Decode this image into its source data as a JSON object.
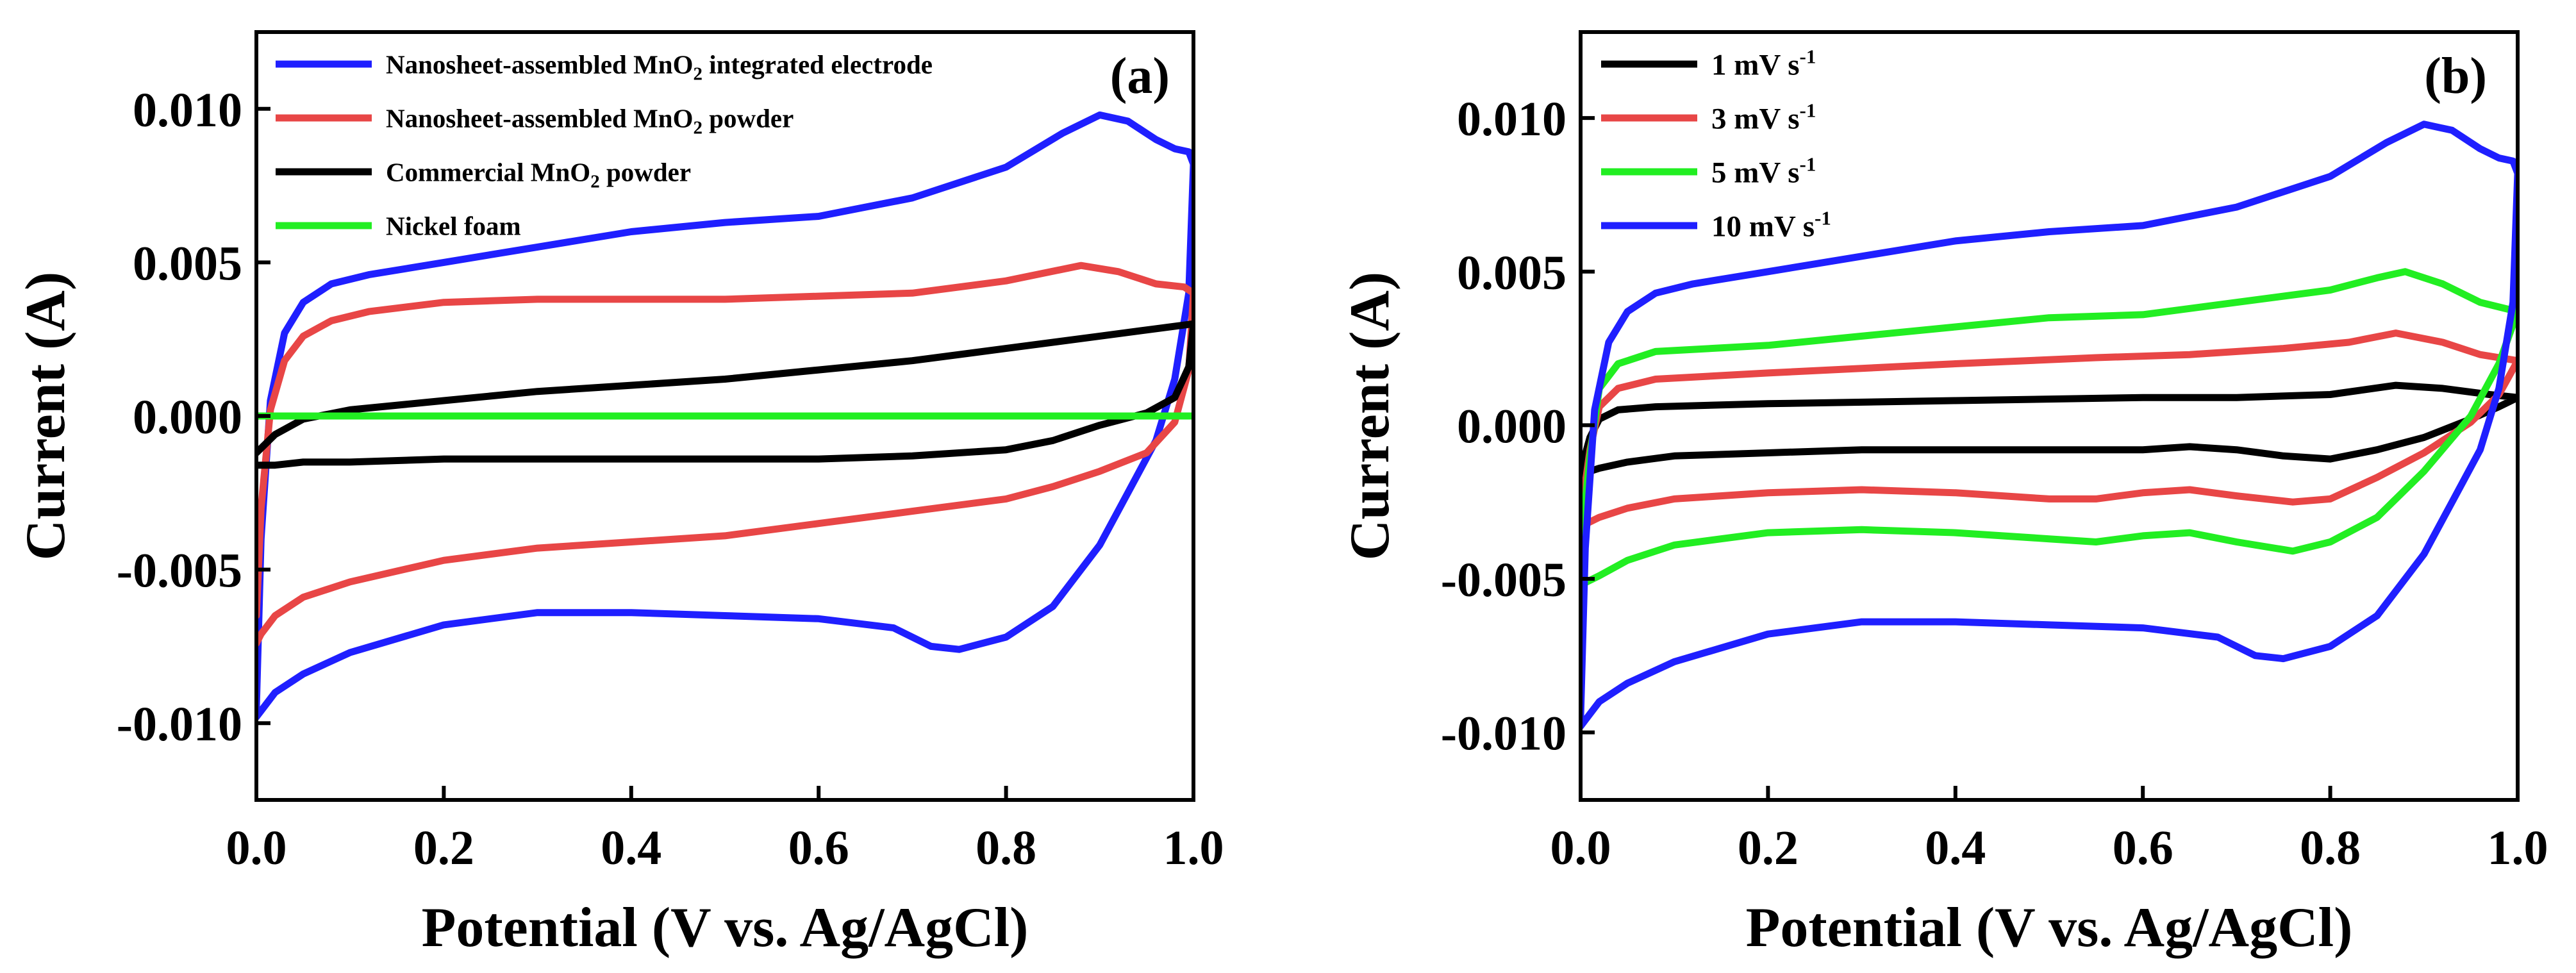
{
  "chart_data": [
    {
      "type": "line",
      "panel_label": "(a)",
      "xlabel": "Potential (V vs. Ag/AgCl)",
      "ylabel": "Current (A)",
      "xlim": [
        0.0,
        1.0
      ],
      "ylim": [
        -0.0125,
        0.0125
      ],
      "xticks": [
        "0.0",
        "0.2",
        "0.4",
        "0.6",
        "0.8",
        "1.0"
      ],
      "xtick_values": [
        0.0,
        0.2,
        0.4,
        0.6,
        0.8,
        1.0
      ],
      "yticks": [
        "-0.010",
        "-0.005",
        "0.000",
        "0.005",
        "0.010"
      ],
      "ytick_values": [
        -0.01,
        -0.005,
        0.0,
        0.005,
        0.01
      ],
      "legend_position": "top-left",
      "series": [
        {
          "name": "Nanosheet-assembled MnO2 integrated electrode",
          "label_main": "Nanosheet-assembled MnO",
          "label_sub": "2",
          "label_tail": "  integrated electrode",
          "color": "#1f1fff",
          "x": [
            0.0,
            0.005,
            0.015,
            0.03,
            0.05,
            0.08,
            0.12,
            0.2,
            0.3,
            0.4,
            0.5,
            0.6,
            0.7,
            0.8,
            0.86,
            0.9,
            0.93,
            0.96,
            0.98,
            0.995,
            1.0,
            0.995,
            0.98,
            0.96,
            0.93,
            0.9,
            0.85,
            0.8,
            0.75,
            0.72,
            0.68,
            0.6,
            0.5,
            0.4,
            0.3,
            0.2,
            0.1,
            0.05,
            0.02,
            0.005,
            0.0
          ],
          "y": [
            -0.0095,
            -0.004,
            0.0005,
            0.0027,
            0.0037,
            0.0043,
            0.0046,
            0.005,
            0.0055,
            0.006,
            0.0063,
            0.0065,
            0.0071,
            0.0081,
            0.0092,
            0.0098,
            0.0096,
            0.009,
            0.0087,
            0.0086,
            0.0082,
            0.004,
            0.0012,
            -0.0008,
            -0.0025,
            -0.0042,
            -0.0062,
            -0.0072,
            -0.0076,
            -0.0075,
            -0.0069,
            -0.0066,
            -0.0065,
            -0.0064,
            -0.0064,
            -0.0068,
            -0.0077,
            -0.0084,
            -0.009,
            -0.0096,
            -0.0098
          ]
        },
        {
          "name": "Nanosheet-assembled MnO2 powder",
          "label_main": "Nanosheet-assembled MnO",
          "label_sub": "2",
          "label_tail": "  powder",
          "color": "#e84646",
          "x": [
            0.0,
            0.005,
            0.015,
            0.03,
            0.05,
            0.08,
            0.12,
            0.2,
            0.3,
            0.4,
            0.5,
            0.6,
            0.7,
            0.8,
            0.88,
            0.92,
            0.96,
            0.99,
            1.0,
            0.995,
            0.98,
            0.95,
            0.9,
            0.85,
            0.8,
            0.7,
            0.6,
            0.5,
            0.4,
            0.3,
            0.2,
            0.1,
            0.05,
            0.02,
            0.005,
            0.0
          ],
          "y": [
            -0.0065,
            -0.003,
            0.0002,
            0.0018,
            0.0026,
            0.0031,
            0.0034,
            0.0037,
            0.0038,
            0.0038,
            0.0038,
            0.0039,
            0.004,
            0.0044,
            0.0049,
            0.0047,
            0.0043,
            0.0042,
            0.004,
            0.0015,
            -0.0002,
            -0.0012,
            -0.0018,
            -0.0023,
            -0.0027,
            -0.0031,
            -0.0035,
            -0.0039,
            -0.0041,
            -0.0043,
            -0.0047,
            -0.0054,
            -0.0059,
            -0.0065,
            -0.0071,
            -0.0074
          ]
        },
        {
          "name": "Commercial MnO2 powder",
          "label_main": "Commercial MnO",
          "label_sub": "2",
          "label_tail": " powder",
          "color": "#000000",
          "x": [
            0.0,
            0.02,
            0.05,
            0.1,
            0.2,
            0.3,
            0.4,
            0.5,
            0.6,
            0.7,
            0.8,
            0.9,
            1.0,
            0.995,
            0.98,
            0.95,
            0.9,
            0.85,
            0.8,
            0.7,
            0.6,
            0.5,
            0.4,
            0.3,
            0.2,
            0.1,
            0.05,
            0.02,
            0.0
          ],
          "y": [
            -0.0012,
            -0.0006,
            -0.0001,
            0.0002,
            0.0005,
            0.0008,
            0.001,
            0.0012,
            0.0015,
            0.0018,
            0.0022,
            0.0026,
            0.003,
            0.0016,
            0.0006,
            0.0001,
            -0.0003,
            -0.0008,
            -0.0011,
            -0.0013,
            -0.0014,
            -0.0014,
            -0.0014,
            -0.0014,
            -0.0014,
            -0.0015,
            -0.0015,
            -0.0016,
            -0.0016
          ]
        },
        {
          "name": "Nickel foam",
          "label_main": "Nickel foam",
          "label_sub": "",
          "label_tail": "",
          "color": "#22ee22",
          "x": [
            0.0,
            1.0
          ],
          "y": [
            0.0,
            0.0
          ]
        }
      ]
    },
    {
      "type": "line",
      "panel_label": "(b)",
      "xlabel": "Potential (V vs. Ag/AgCl)",
      "ylabel": "Current (A)",
      "xlim": [
        0.0,
        1.0
      ],
      "ylim": [
        -0.0122,
        0.0128
      ],
      "xticks": [
        "0.0",
        "0.2",
        "0.4",
        "0.6",
        "0.8",
        "1.0"
      ],
      "xtick_values": [
        0.0,
        0.2,
        0.4,
        0.6,
        0.8,
        1.0
      ],
      "yticks": [
        "-0.010",
        "-0.005",
        "0.000",
        "0.005",
        "0.010"
      ],
      "ytick_values": [
        -0.01,
        -0.005,
        0.0,
        0.005,
        0.01
      ],
      "legend_position": "top-left",
      "series": [
        {
          "name": "1 mV s-1",
          "label_main": "1  mV s",
          "label_sup": "-1",
          "color": "#000000",
          "x": [
            0.0,
            0.01,
            0.02,
            0.04,
            0.08,
            0.2,
            0.4,
            0.6,
            0.7,
            0.8,
            0.87,
            0.92,
            0.97,
            1.0,
            0.98,
            0.95,
            0.9,
            0.85,
            0.8,
            0.75,
            0.7,
            0.65,
            0.6,
            0.5,
            0.4,
            0.3,
            0.2,
            0.1,
            0.05,
            0.02,
            0.0
          ],
          "y": [
            -0.0015,
            -0.0004,
            0.0002,
            0.0005,
            0.0006,
            0.0007,
            0.0008,
            0.0009,
            0.0009,
            0.001,
            0.0013,
            0.0012,
            0.001,
            0.0009,
            0.0006,
            0.0002,
            -0.0004,
            -0.0008,
            -0.0011,
            -0.001,
            -0.0008,
            -0.0007,
            -0.0008,
            -0.0008,
            -0.0008,
            -0.0008,
            -0.0009,
            -0.001,
            -0.0012,
            -0.0014,
            -0.0016
          ]
        },
        {
          "name": "3 mV s-1",
          "label_main": "3  mV s",
          "label_sup": "-1",
          "color": "#e84646",
          "x": [
            0.0,
            0.01,
            0.02,
            0.04,
            0.08,
            0.2,
            0.4,
            0.55,
            0.65,
            0.75,
            0.82,
            0.87,
            0.92,
            0.96,
            1.0,
            0.98,
            0.95,
            0.9,
            0.85,
            0.8,
            0.76,
            0.7,
            0.65,
            0.6,
            0.55,
            0.5,
            0.4,
            0.3,
            0.2,
            0.1,
            0.05,
            0.02,
            0.0
          ],
          "y": [
            -0.003,
            -0.0008,
            0.0006,
            0.0012,
            0.0015,
            0.0017,
            0.002,
            0.0022,
            0.0023,
            0.0025,
            0.0027,
            0.003,
            0.0027,
            0.0023,
            0.0021,
            0.001,
            0.0001,
            -0.0009,
            -0.0017,
            -0.0024,
            -0.0025,
            -0.0023,
            -0.0021,
            -0.0022,
            -0.0024,
            -0.0024,
            -0.0022,
            -0.0021,
            -0.0022,
            -0.0024,
            -0.0027,
            -0.003,
            -0.0033
          ]
        },
        {
          "name": "5 mV s-1",
          "label_main": "5  mV s",
          "label_sup": "-1",
          "color": "#22ee22",
          "x": [
            0.0,
            0.01,
            0.02,
            0.04,
            0.08,
            0.2,
            0.3,
            0.4,
            0.5,
            0.6,
            0.7,
            0.8,
            0.85,
            0.88,
            0.92,
            0.96,
            1.0,
            0.98,
            0.95,
            0.9,
            0.85,
            0.8,
            0.76,
            0.7,
            0.65,
            0.6,
            0.55,
            0.5,
            0.4,
            0.3,
            0.2,
            0.1,
            0.05,
            0.02,
            0.0
          ],
          "y": [
            -0.004,
            -0.001,
            0.0012,
            0.002,
            0.0024,
            0.0026,
            0.0029,
            0.0032,
            0.0035,
            0.0036,
            0.004,
            0.0044,
            0.0048,
            0.005,
            0.0046,
            0.004,
            0.0037,
            0.002,
            0.0003,
            -0.0015,
            -0.003,
            -0.0038,
            -0.0041,
            -0.0038,
            -0.0035,
            -0.0036,
            -0.0038,
            -0.0037,
            -0.0035,
            -0.0034,
            -0.0035,
            -0.0039,
            -0.0044,
            -0.0049,
            -0.0052
          ]
        },
        {
          "name": "10 mV s-1",
          "label_main": "10 mV s",
          "label_sup": "-1",
          "color": "#1f1fff",
          "x": [
            0.0,
            0.005,
            0.015,
            0.03,
            0.05,
            0.08,
            0.12,
            0.2,
            0.3,
            0.4,
            0.5,
            0.6,
            0.7,
            0.8,
            0.86,
            0.9,
            0.93,
            0.96,
            0.98,
            0.995,
            1.0,
            0.995,
            0.98,
            0.96,
            0.93,
            0.9,
            0.85,
            0.8,
            0.75,
            0.72,
            0.68,
            0.6,
            0.5,
            0.4,
            0.3,
            0.2,
            0.1,
            0.05,
            0.02,
            0.005,
            0.0
          ],
          "y": [
            -0.0095,
            -0.004,
            0.0005,
            0.0027,
            0.0037,
            0.0043,
            0.0046,
            0.005,
            0.0055,
            0.006,
            0.0063,
            0.0065,
            0.0071,
            0.0081,
            0.0092,
            0.0098,
            0.0096,
            0.009,
            0.0087,
            0.0086,
            0.0082,
            0.004,
            0.0012,
            -0.0008,
            -0.0025,
            -0.0042,
            -0.0062,
            -0.0072,
            -0.0076,
            -0.0075,
            -0.0069,
            -0.0066,
            -0.0065,
            -0.0064,
            -0.0064,
            -0.0068,
            -0.0077,
            -0.0084,
            -0.009,
            -0.0096,
            -0.0098
          ]
        }
      ]
    }
  ]
}
